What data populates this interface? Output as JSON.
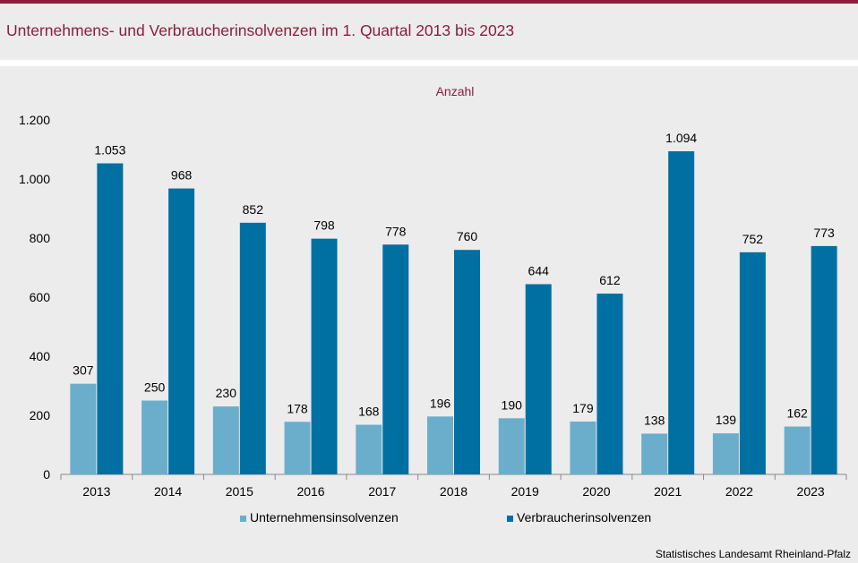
{
  "title": "Unternehmens- und Verbraucherinsolvenzen im 1. Quartal  2013 bis 2023",
  "source": "Statistisches Landesamt  Rheinland-Pfalz",
  "colors": {
    "accent": "#8b1e3f",
    "series_light": "#6aaecb",
    "series_dark": "#0070a3"
  },
  "chart_data": {
    "type": "bar",
    "unit_label": "Anzahl",
    "categories": [
      "2013",
      "2014",
      "2015",
      "2016",
      "2017",
      "2018",
      "2019",
      "2020",
      "2021",
      "2022",
      "2023"
    ],
    "series": [
      {
        "name": "Unternehmensinsolvenzen",
        "values": [
          307,
          250,
          230,
          178,
          168,
          196,
          190,
          179,
          138,
          139,
          162
        ]
      },
      {
        "name": "Verbraucherinsolvenzen",
        "values": [
          1053,
          968,
          852,
          798,
          778,
          760,
          644,
          612,
          1094,
          752,
          773
        ]
      }
    ],
    "ylim": [
      0,
      1200
    ],
    "yticks": [
      0,
      200,
      400,
      600,
      800,
      1000,
      1200
    ],
    "ytick_labels": [
      "0",
      "200",
      "400",
      "600",
      "800",
      "1.000",
      "1.200"
    ],
    "data_labels": [
      [
        "307",
        "250",
        "230",
        "178",
        "168",
        "196",
        "190",
        "179",
        "138",
        "139",
        "162"
      ],
      [
        "1.053",
        "968",
        "852",
        "798",
        "778",
        "760",
        "644",
        "612",
        "1.094",
        "752",
        "773"
      ]
    ],
    "legend_position": "bottom"
  }
}
